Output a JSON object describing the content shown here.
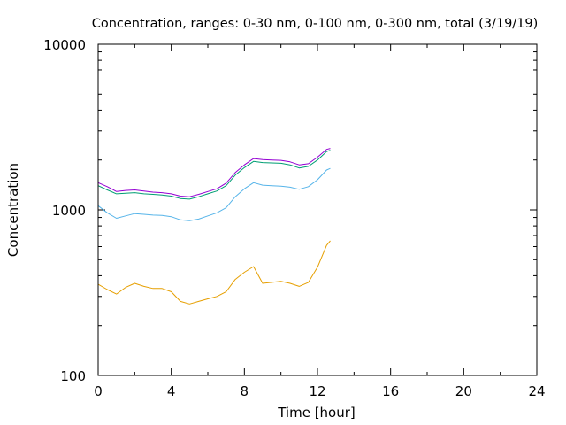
{
  "chart_data": {
    "type": "line",
    "title": "Concentration, ranges: 0-30 nm, 0-100 nm, 0-300 nm, total (3/19/19)",
    "xlabel": "Time [hour]",
    "ylabel": "Concentration",
    "xlim": [
      0,
      24
    ],
    "ylim": [
      100,
      10000
    ],
    "yscale": "log",
    "grid": false,
    "legend": "none",
    "x_ticks": [
      "0",
      "4",
      "8",
      "12",
      "16",
      "20",
      "24"
    ],
    "y_ticks": [
      "100",
      "1000",
      "10000"
    ],
    "x_tick_values": [
      0,
      4,
      8,
      12,
      16,
      20,
      24
    ],
    "y_tick_values": [
      100,
      1000,
      10000
    ],
    "series": [
      {
        "color": "#e69f00",
        "x": [
          0,
          0.5,
          1,
          1.5,
          2,
          2.5,
          3,
          3.5,
          4,
          4.5,
          5,
          5.5,
          6,
          6.5,
          7,
          7.5,
          8,
          8.5,
          9,
          9.5,
          10,
          10.5,
          11,
          11.5,
          12,
          12.5,
          12.7
        ],
        "y": [
          355,
          330,
          310,
          340,
          360,
          345,
          335,
          335,
          320,
          280,
          270,
          280,
          290,
          300,
          320,
          380,
          420,
          455,
          360,
          365,
          370,
          360,
          345,
          365,
          450,
          610,
          650
        ]
      },
      {
        "color": "#56b4e9",
        "x": [
          0,
          0.5,
          1,
          1.5,
          2,
          2.5,
          3,
          3.5,
          4,
          4.5,
          5,
          5.5,
          6,
          6.5,
          7,
          7.5,
          8,
          8.5,
          9,
          9.5,
          10,
          10.5,
          11,
          11.5,
          12,
          12.5,
          12.7
        ],
        "y": [
          1060,
          960,
          890,
          920,
          950,
          940,
          930,
          925,
          910,
          870,
          860,
          880,
          920,
          960,
          1030,
          1200,
          1340,
          1460,
          1410,
          1400,
          1390,
          1370,
          1330,
          1380,
          1520,
          1740,
          1780
        ]
      },
      {
        "color": "#009e73",
        "x": [
          0,
          0.5,
          1,
          1.5,
          2,
          2.5,
          3,
          3.5,
          4,
          4.5,
          5,
          5.5,
          6,
          6.5,
          7,
          7.5,
          8,
          8.5,
          9,
          9.5,
          10,
          10.5,
          11,
          11.5,
          12,
          12.5,
          12.7
        ],
        "y": [
          1400,
          1320,
          1250,
          1260,
          1270,
          1250,
          1240,
          1230,
          1210,
          1170,
          1160,
          1200,
          1250,
          1300,
          1400,
          1620,
          1800,
          1960,
          1930,
          1920,
          1910,
          1870,
          1790,
          1830,
          2000,
          2250,
          2290
        ]
      },
      {
        "color": "#9400d3",
        "x": [
          0,
          0.5,
          1,
          1.5,
          2,
          2.5,
          3,
          3.5,
          4,
          4.5,
          5,
          5.5,
          6,
          6.5,
          7,
          7.5,
          8,
          8.5,
          9,
          9.5,
          10,
          10.5,
          11,
          11.5,
          12,
          12.5,
          12.7
        ],
        "y": [
          1460,
          1380,
          1290,
          1310,
          1320,
          1300,
          1280,
          1270,
          1250,
          1210,
          1200,
          1240,
          1290,
          1340,
          1450,
          1680,
          1870,
          2040,
          2010,
          2000,
          1990,
          1950,
          1870,
          1900,
          2080,
          2320,
          2350
        ]
      }
    ]
  }
}
